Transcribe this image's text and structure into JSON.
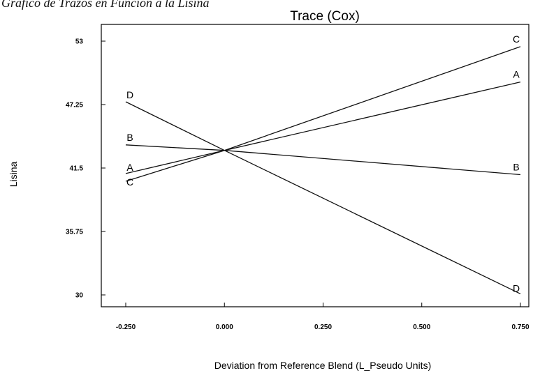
{
  "document": {
    "caption": "Gráfico de Trazos en Función a la Lisina"
  },
  "chart_data": {
    "type": "line",
    "title": "Trace (Cox)",
    "xlabel": "Deviation from Reference Blend (L_Pseudo Units)",
    "ylabel": "Lisina",
    "xlim": [
      -0.25,
      0.75
    ],
    "ylim": [
      30,
      53
    ],
    "x_ticks": [
      -0.25,
      0,
      0.25,
      0.5,
      0.75
    ],
    "x_tick_labels": [
      "-0.250",
      "0.000",
      "0.250",
      "0.500",
      "0.750"
    ],
    "y_ticks": [
      30,
      35.75,
      41.5,
      47.25,
      53
    ],
    "y_tick_labels": [
      "30",
      "35.75",
      "41.5",
      "47.25",
      "53"
    ],
    "grid": false,
    "legend": "none",
    "line_color": "#111111",
    "series": [
      {
        "name": "A",
        "x": [
          -0.25,
          0,
          0.75
        ],
        "y": [
          41.0,
          43.1,
          49.3
        ]
      },
      {
        "name": "B",
        "x": [
          -0.25,
          0,
          0.75
        ],
        "y": [
          43.6,
          43.1,
          40.9
        ]
      },
      {
        "name": "C",
        "x": [
          -0.25,
          0,
          0.75
        ],
        "y": [
          40.3,
          43.1,
          52.5
        ]
      },
      {
        "name": "D",
        "x": [
          -0.25,
          0,
          0.75
        ],
        "y": [
          47.5,
          43.1,
          30.1
        ]
      }
    ]
  }
}
